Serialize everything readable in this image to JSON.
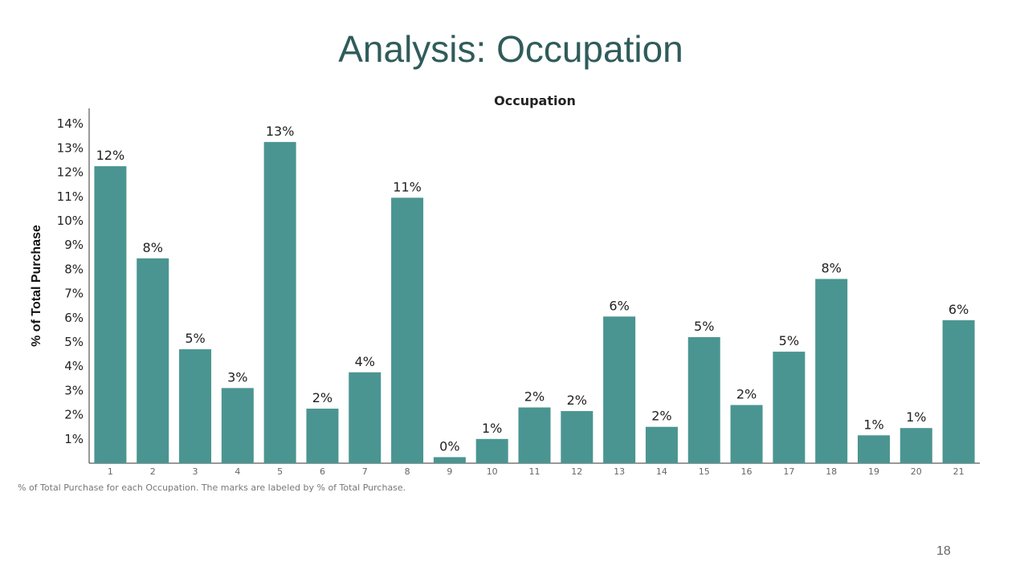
{
  "slide": {
    "title": "Analysis: Occupation",
    "page_number": "18",
    "caption": "% of Total Purchase for each Occupation.  The marks are labeled by % of Total Purchase."
  },
  "colors": {
    "bar": "#4a9591",
    "title": "#2f5c5a",
    "axis": "#333333"
  },
  "chart_data": {
    "type": "bar",
    "title": "Occupation",
    "xlabel": "",
    "ylabel": "% of Total Purchase",
    "ylim": [
      0,
      14.5
    ],
    "y_ticks": [
      "1%",
      "2%",
      "3%",
      "4%",
      "5%",
      "6%",
      "7%",
      "8%",
      "9%",
      "10%",
      "11%",
      "12%",
      "13%",
      "14%"
    ],
    "categories": [
      "1",
      "2",
      "3",
      "4",
      "5",
      "6",
      "7",
      "8",
      "9",
      "10",
      "11",
      "12",
      "13",
      "14",
      "15",
      "16",
      "17",
      "18",
      "19",
      "20",
      "21"
    ],
    "values": [
      12.25,
      8.45,
      4.7,
      3.1,
      13.25,
      2.25,
      3.75,
      10.95,
      0.25,
      1.0,
      2.3,
      2.15,
      6.05,
      1.5,
      5.2,
      2.4,
      4.6,
      7.6,
      1.15,
      1.45,
      5.9
    ],
    "labels": [
      "12%",
      "8%",
      "5%",
      "3%",
      "13%",
      "2%",
      "4%",
      "11%",
      "0%",
      "1%",
      "2%",
      "2%",
      "6%",
      "2%",
      "5%",
      "2%",
      "5%",
      "8%",
      "1%",
      "1%",
      "6%"
    ],
    "grid": false,
    "legend": "none"
  }
}
